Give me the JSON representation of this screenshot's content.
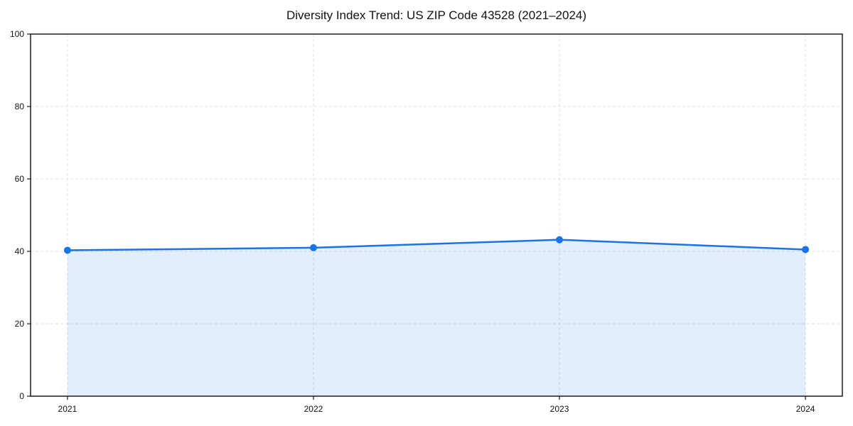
{
  "chart_data": {
    "type": "area",
    "title": "Diversity Index Trend: US ZIP Code 43528 (2021–2024)",
    "xlabel": "",
    "ylabel": "",
    "x": [
      2021,
      2022,
      2023,
      2024
    ],
    "values": [
      40.3,
      41.0,
      43.2,
      40.5
    ],
    "xticklabels": [
      "2021",
      "2022",
      "2023",
      "2024"
    ],
    "yticks": [
      0,
      20,
      40,
      60,
      80,
      100
    ],
    "xlim": [
      2020.85,
      2024.15
    ],
    "ylim": [
      0,
      100
    ],
    "grid": true,
    "legend": "none",
    "line_color": "#1a73e8",
    "marker_color": "#1a73e8",
    "fill_color": "#1a73e8",
    "fill_opacity": 0.12,
    "grid_color": "#dedede",
    "spine_color": "#1a1a1a",
    "tick_color": "#1a1a1a",
    "background_color": "#ffffff"
  }
}
